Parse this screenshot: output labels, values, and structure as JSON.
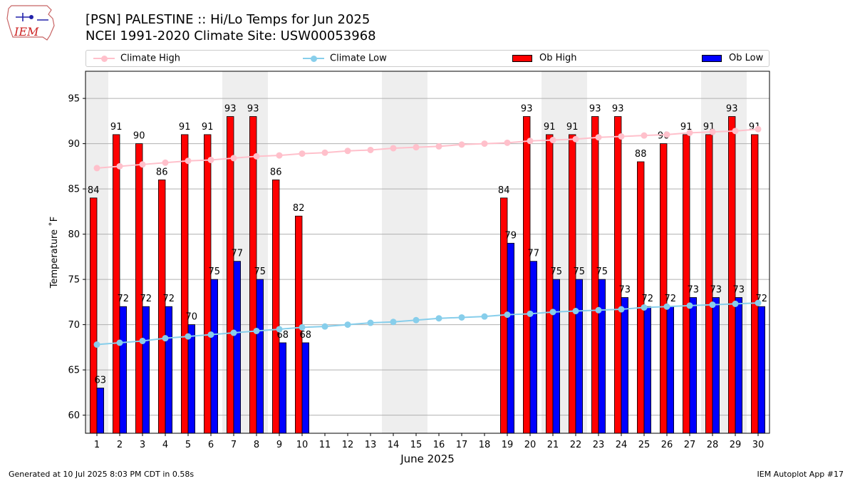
{
  "header": {
    "title_line1": "[PSN] PALESTINE :: Hi/Lo Temps for Jun 2025",
    "title_line2": "NCEI 1991-2020 Climate Site: USW00053968",
    "logo_text": "IEM"
  },
  "footer": {
    "left": "Generated at 10 Jul 2025 8:03 PM CDT in 0.58s",
    "right": "IEM Autoplot App #17"
  },
  "legend": {
    "climate_high": "Climate High",
    "climate_low": "Climate Low",
    "ob_high": "Ob High",
    "ob_low": "Ob Low"
  },
  "colors": {
    "ob_high": "#ff0000",
    "ob_low": "#0000ff",
    "climate_high": "#ffc0cb",
    "climate_low": "#87ceeb",
    "weekend_shade": "#eeeeee",
    "grid": "#b0b0b0"
  },
  "chart_data": {
    "type": "bar",
    "title": "[PSN] PALESTINE :: Hi/Lo Temps for Jun 2025",
    "subtitle": "NCEI 1991-2020 Climate Site: USW00053968",
    "xlabel": "June 2025",
    "ylabel": "Temperature ˚F",
    "ylim": [
      58,
      98
    ],
    "yticks": [
      60,
      65,
      70,
      75,
      80,
      85,
      90,
      95
    ],
    "ygrid": true,
    "legend_position": "top",
    "days": [
      1,
      2,
      3,
      4,
      5,
      6,
      7,
      8,
      9,
      10,
      11,
      12,
      13,
      14,
      15,
      16,
      17,
      18,
      19,
      20,
      21,
      22,
      23,
      24,
      25,
      26,
      27,
      28,
      29,
      30
    ],
    "shaded_days": [
      1,
      7,
      8,
      14,
      15,
      21,
      22,
      28,
      29
    ],
    "series": [
      {
        "name": "Ob High",
        "kind": "bar",
        "values": [
          84,
          91,
          90,
          86,
          91,
          91,
          93,
          93,
          86,
          82,
          null,
          null,
          null,
          null,
          null,
          null,
          null,
          null,
          84,
          93,
          91,
          91,
          93,
          93,
          88,
          90,
          91,
          91,
          93,
          91
        ]
      },
      {
        "name": "Ob Low",
        "kind": "bar",
        "values": [
          63,
          72,
          72,
          72,
          70,
          75,
          77,
          75,
          68,
          68,
          null,
          null,
          null,
          null,
          null,
          null,
          null,
          null,
          79,
          77,
          75,
          75,
          75,
          73,
          72,
          72,
          73,
          73,
          73,
          72
        ]
      },
      {
        "name": "Climate High",
        "kind": "line",
        "values": [
          87.3,
          87.5,
          87.7,
          87.9,
          88.1,
          88.2,
          88.4,
          88.6,
          88.7,
          88.9,
          89.0,
          89.2,
          89.3,
          89.5,
          89.6,
          89.7,
          89.9,
          90.0,
          90.1,
          90.3,
          90.4,
          90.5,
          90.7,
          90.8,
          90.9,
          91.0,
          91.2,
          91.3,
          91.4,
          91.6
        ]
      },
      {
        "name": "Climate Low",
        "kind": "line",
        "values": [
          67.8,
          68.0,
          68.2,
          68.5,
          68.7,
          68.9,
          69.1,
          69.3,
          69.5,
          69.7,
          69.8,
          70.0,
          70.2,
          70.3,
          70.5,
          70.7,
          70.8,
          70.9,
          71.1,
          71.2,
          71.4,
          71.5,
          71.6,
          71.7,
          71.9,
          72.0,
          72.1,
          72.2,
          72.3,
          72.4
        ]
      }
    ]
  }
}
